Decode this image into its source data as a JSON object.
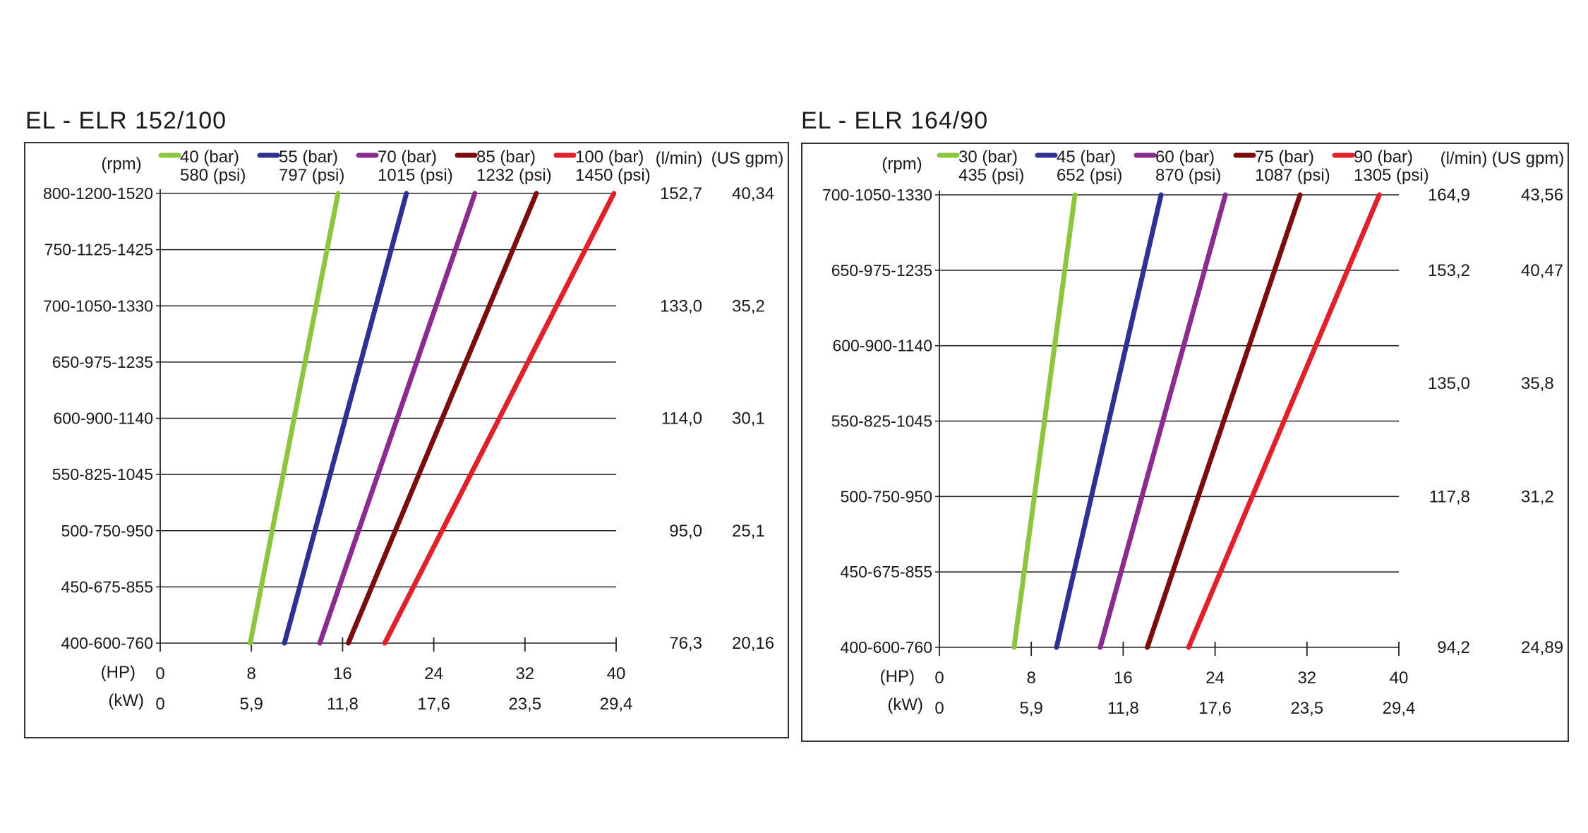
{
  "panels": [
    {
      "title": "EL - ELR 152/100",
      "chart_data": {
        "type": "line",
        "title": "EL - ELR 152/100",
        "y_header": "(rpm)",
        "y_categories": [
          "400-600-760",
          "450-675-855",
          "500-750-950",
          "550-825-1045",
          "600-900-1140",
          "650-975-1235",
          "700-1050-1330",
          "750-1125-1425",
          "800-1200-1520"
        ],
        "flow_headers": [
          "(l/min)",
          "(US gpm)"
        ],
        "flow_rows": [
          {
            "level": 8,
            "lmin": "152,7",
            "gpm": "40,34"
          },
          {
            "level": 6,
            "lmin": "133,0",
            "gpm": "35,2"
          },
          {
            "level": 4,
            "lmin": "114,0",
            "gpm": "30,1"
          },
          {
            "level": 2,
            "lmin": "95,0",
            "gpm": "25,1"
          },
          {
            "level": 0,
            "lmin": "76,3",
            "gpm": "20,16"
          }
        ],
        "x_hp_label": "(HP)",
        "x_hp_ticks": [
          "0",
          "8",
          "16",
          "24",
          "32",
          "40"
        ],
        "x_kw_label": "(kW)",
        "x_kw_ticks": [
          "0",
          "5,9",
          "11,8",
          "17,6",
          "23,5",
          "29,4"
        ],
        "xlim_hp": [
          0,
          40
        ],
        "ylim_levels": [
          0,
          8
        ],
        "series": [
          {
            "name": "40 (bar)",
            "psi": "580 (psi)",
            "color": "#8cc63f",
            "points": [
              [
                7.9,
                0
              ],
              [
                15.6,
                8
              ]
            ]
          },
          {
            "name": "55 (bar)",
            "psi": "797 (psi)",
            "color": "#2e3192",
            "points": [
              [
                10.9,
                0
              ],
              [
                21.6,
                8
              ]
            ]
          },
          {
            "name": "70 (bar)",
            "psi": "1015 (psi)",
            "color": "#8b2a8f",
            "points": [
              [
                14.0,
                0
              ],
              [
                27.6,
                8
              ]
            ]
          },
          {
            "name": "85 (bar)",
            "psi": "1232 (psi)",
            "color": "#7a0c0c",
            "points": [
              [
                16.5,
                0
              ],
              [
                33.0,
                8
              ]
            ]
          },
          {
            "name": "100 (bar)",
            "psi": "1450 (psi)",
            "color": "#e0212b",
            "points": [
              [
                19.7,
                0
              ],
              [
                39.8,
                8
              ]
            ]
          }
        ]
      }
    },
    {
      "title": "EL - ELR 164/90",
      "chart_data": {
        "type": "line",
        "title": "EL - ELR 164/90",
        "y_header": "(rpm)",
        "y_categories": [
          "400-600-760",
          "450-675-855",
          "500-750-950",
          "550-825-1045",
          "600-900-1140",
          "650-975-1235",
          "700-1050-1330"
        ],
        "flow_headers": [
          "(l/min)",
          "(US gpm)"
        ],
        "flow_rows": [
          {
            "level": 6,
            "lmin": "164,9",
            "gpm": "43,56"
          },
          {
            "level": 5,
            "lmin": "153,2",
            "gpm": "40,47"
          },
          {
            "level": 3.5,
            "lmin": "135,0",
            "gpm": "35,8"
          },
          {
            "level": 2,
            "lmin": "117,8",
            "gpm": "31,2"
          },
          {
            "level": 0,
            "lmin": "94,2",
            "gpm": "24,89"
          }
        ],
        "x_hp_label": "(HP)",
        "x_hp_ticks": [
          "0",
          "8",
          "16",
          "24",
          "32",
          "40"
        ],
        "x_kw_label": "(kW)",
        "x_kw_ticks": [
          "0",
          "5,9",
          "11,8",
          "17,6",
          "23,5",
          "29,4"
        ],
        "xlim_hp": [
          0,
          40
        ],
        "ylim_levels": [
          0,
          6
        ],
        "series": [
          {
            "name": "30 (bar)",
            "psi": "435 (psi)",
            "color": "#8cc63f",
            "points": [
              [
                6.5,
                0
              ],
              [
                11.8,
                6
              ]
            ]
          },
          {
            "name": "45 (bar)",
            "psi": "652 (psi)",
            "color": "#2e3192",
            "points": [
              [
                10.2,
                0
              ],
              [
                19.3,
                6
              ]
            ]
          },
          {
            "name": "60 (bar)",
            "psi": "870 (psi)",
            "color": "#8b2a8f",
            "points": [
              [
                14.0,
                0
              ],
              [
                24.9,
                6
              ]
            ]
          },
          {
            "name": "75 (bar)",
            "psi": "1087 (psi)",
            "color": "#7a0c0c",
            "points": [
              [
                18.1,
                0
              ],
              [
                31.4,
                6
              ]
            ]
          },
          {
            "name": "90 (bar)",
            "psi": "1305 (psi)",
            "color": "#e0212b",
            "points": [
              [
                21.7,
                0
              ],
              [
                38.3,
                6
              ]
            ]
          }
        ]
      }
    }
  ]
}
